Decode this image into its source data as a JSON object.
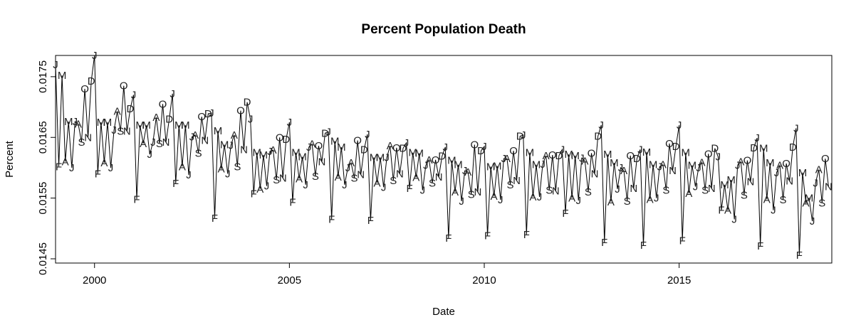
{
  "chart_data": {
    "type": "line",
    "title": "Percent Population Death",
    "xlabel": "Date",
    "ylabel": "Percent",
    "xlim": [
      1999.0,
      2018.917
    ],
    "ylim": [
      0.01443,
      0.01785
    ],
    "x_ticks": [
      2000,
      2005,
      2010,
      2015
    ],
    "y_ticks": [
      0.0145,
      0.0155,
      0.0165,
      0.0175
    ],
    "point_labels": "month initials",
    "grid": false,
    "legend": "none",
    "start": "1999-01",
    "month_initials": [
      "J",
      "F",
      "M",
      "A",
      "M",
      "J",
      "J",
      "A",
      "S",
      "O",
      "N",
      "D"
    ],
    "series": [
      {
        "values": [
          0.0177,
          0.01602,
          0.01752,
          0.0161,
          0.01676,
          0.016,
          0.01676,
          0.01672,
          0.01642,
          0.0173,
          0.0165,
          0.01743,
          0.01785,
          0.0159,
          0.01675,
          0.01608,
          0.01675,
          0.016,
          0.01662,
          0.01693,
          0.0166,
          0.01735,
          0.0166,
          0.01697,
          0.0172,
          0.01548,
          0.0167,
          0.0164,
          0.0167,
          0.01622,
          0.01642,
          0.01683,
          0.0164,
          0.01705,
          0.01642,
          0.0168,
          0.01722,
          0.01574,
          0.0167,
          0.01602,
          0.0167,
          0.01588,
          0.01651,
          0.01654,
          0.01624,
          0.01684,
          0.01645,
          0.01689,
          0.0169,
          0.01517,
          0.01661,
          0.01598,
          0.01638,
          0.0159,
          0.01637,
          0.01654,
          0.01602,
          0.01694,
          0.0163,
          0.01708,
          0.0168,
          0.01557,
          0.01625,
          0.01565,
          0.01621,
          0.0157,
          0.01627,
          0.01629,
          0.0158,
          0.0165,
          0.01583,
          0.01647,
          0.01675,
          0.01543,
          0.01625,
          0.01582,
          0.01618,
          0.01572,
          0.01634,
          0.01639,
          0.01586,
          0.01636,
          0.0161,
          0.01657,
          0.01659,
          0.01515,
          0.01644,
          0.01585,
          0.01634,
          0.01572,
          0.016,
          0.01608,
          0.01583,
          0.01645,
          0.01589,
          0.0163,
          0.01655,
          0.01513,
          0.01617,
          0.01575,
          0.01617,
          0.01568,
          0.01617,
          0.01636,
          0.01579,
          0.01633,
          0.0159,
          0.01632,
          0.01641,
          0.01566,
          0.01625,
          0.01584,
          0.01624,
          0.01563,
          0.01604,
          0.01613,
          0.01575,
          0.01613,
          0.01585,
          0.01619,
          0.01634,
          0.01484,
          0.01612,
          0.0156,
          0.01605,
          0.01545,
          0.01595,
          0.01593,
          0.01556,
          0.01638,
          0.0156,
          0.01628,
          0.01635,
          0.01488,
          0.01602,
          0.01553,
          0.01603,
          0.01547,
          0.01615,
          0.01615,
          0.01572,
          0.01628,
          0.01579,
          0.01652,
          0.01654,
          0.0149,
          0.01625,
          0.01552,
          0.01605,
          0.01552,
          0.01606,
          0.0162,
          0.01563,
          0.01621,
          0.01562,
          0.0162,
          0.0163,
          0.01525,
          0.01622,
          0.0155,
          0.0162,
          0.01546,
          0.01616,
          0.01611,
          0.0156,
          0.01624,
          0.0159,
          0.01652,
          0.0167,
          0.01477,
          0.01622,
          0.01544,
          0.01608,
          0.01565,
          0.016,
          0.01595,
          0.01545,
          0.0162,
          0.01566,
          0.01615,
          0.0163,
          0.01472,
          0.01626,
          0.01548,
          0.01605,
          0.0155,
          0.01602,
          0.01605,
          0.01563,
          0.0164,
          0.01595,
          0.01635,
          0.0167,
          0.0148,
          0.01625,
          0.01558,
          0.01604,
          0.01569,
          0.016,
          0.01609,
          0.01563,
          0.01623,
          0.01566,
          0.01632,
          0.01618,
          0.0153,
          0.01572,
          0.0153,
          0.0158,
          0.01515,
          0.01604,
          0.0161,
          0.01555,
          0.01612,
          0.01577,
          0.01633,
          0.01649,
          0.01471,
          0.01632,
          0.01548,
          0.01608,
          0.0153,
          0.01592,
          0.01604,
          0.01547,
          0.01607,
          0.01578,
          0.01634,
          0.01665,
          0.01456,
          0.01592,
          0.01542,
          0.0155,
          0.01512,
          0.01575,
          0.01597,
          0.01542,
          0.01615,
          0.01569
        ]
      }
    ]
  }
}
